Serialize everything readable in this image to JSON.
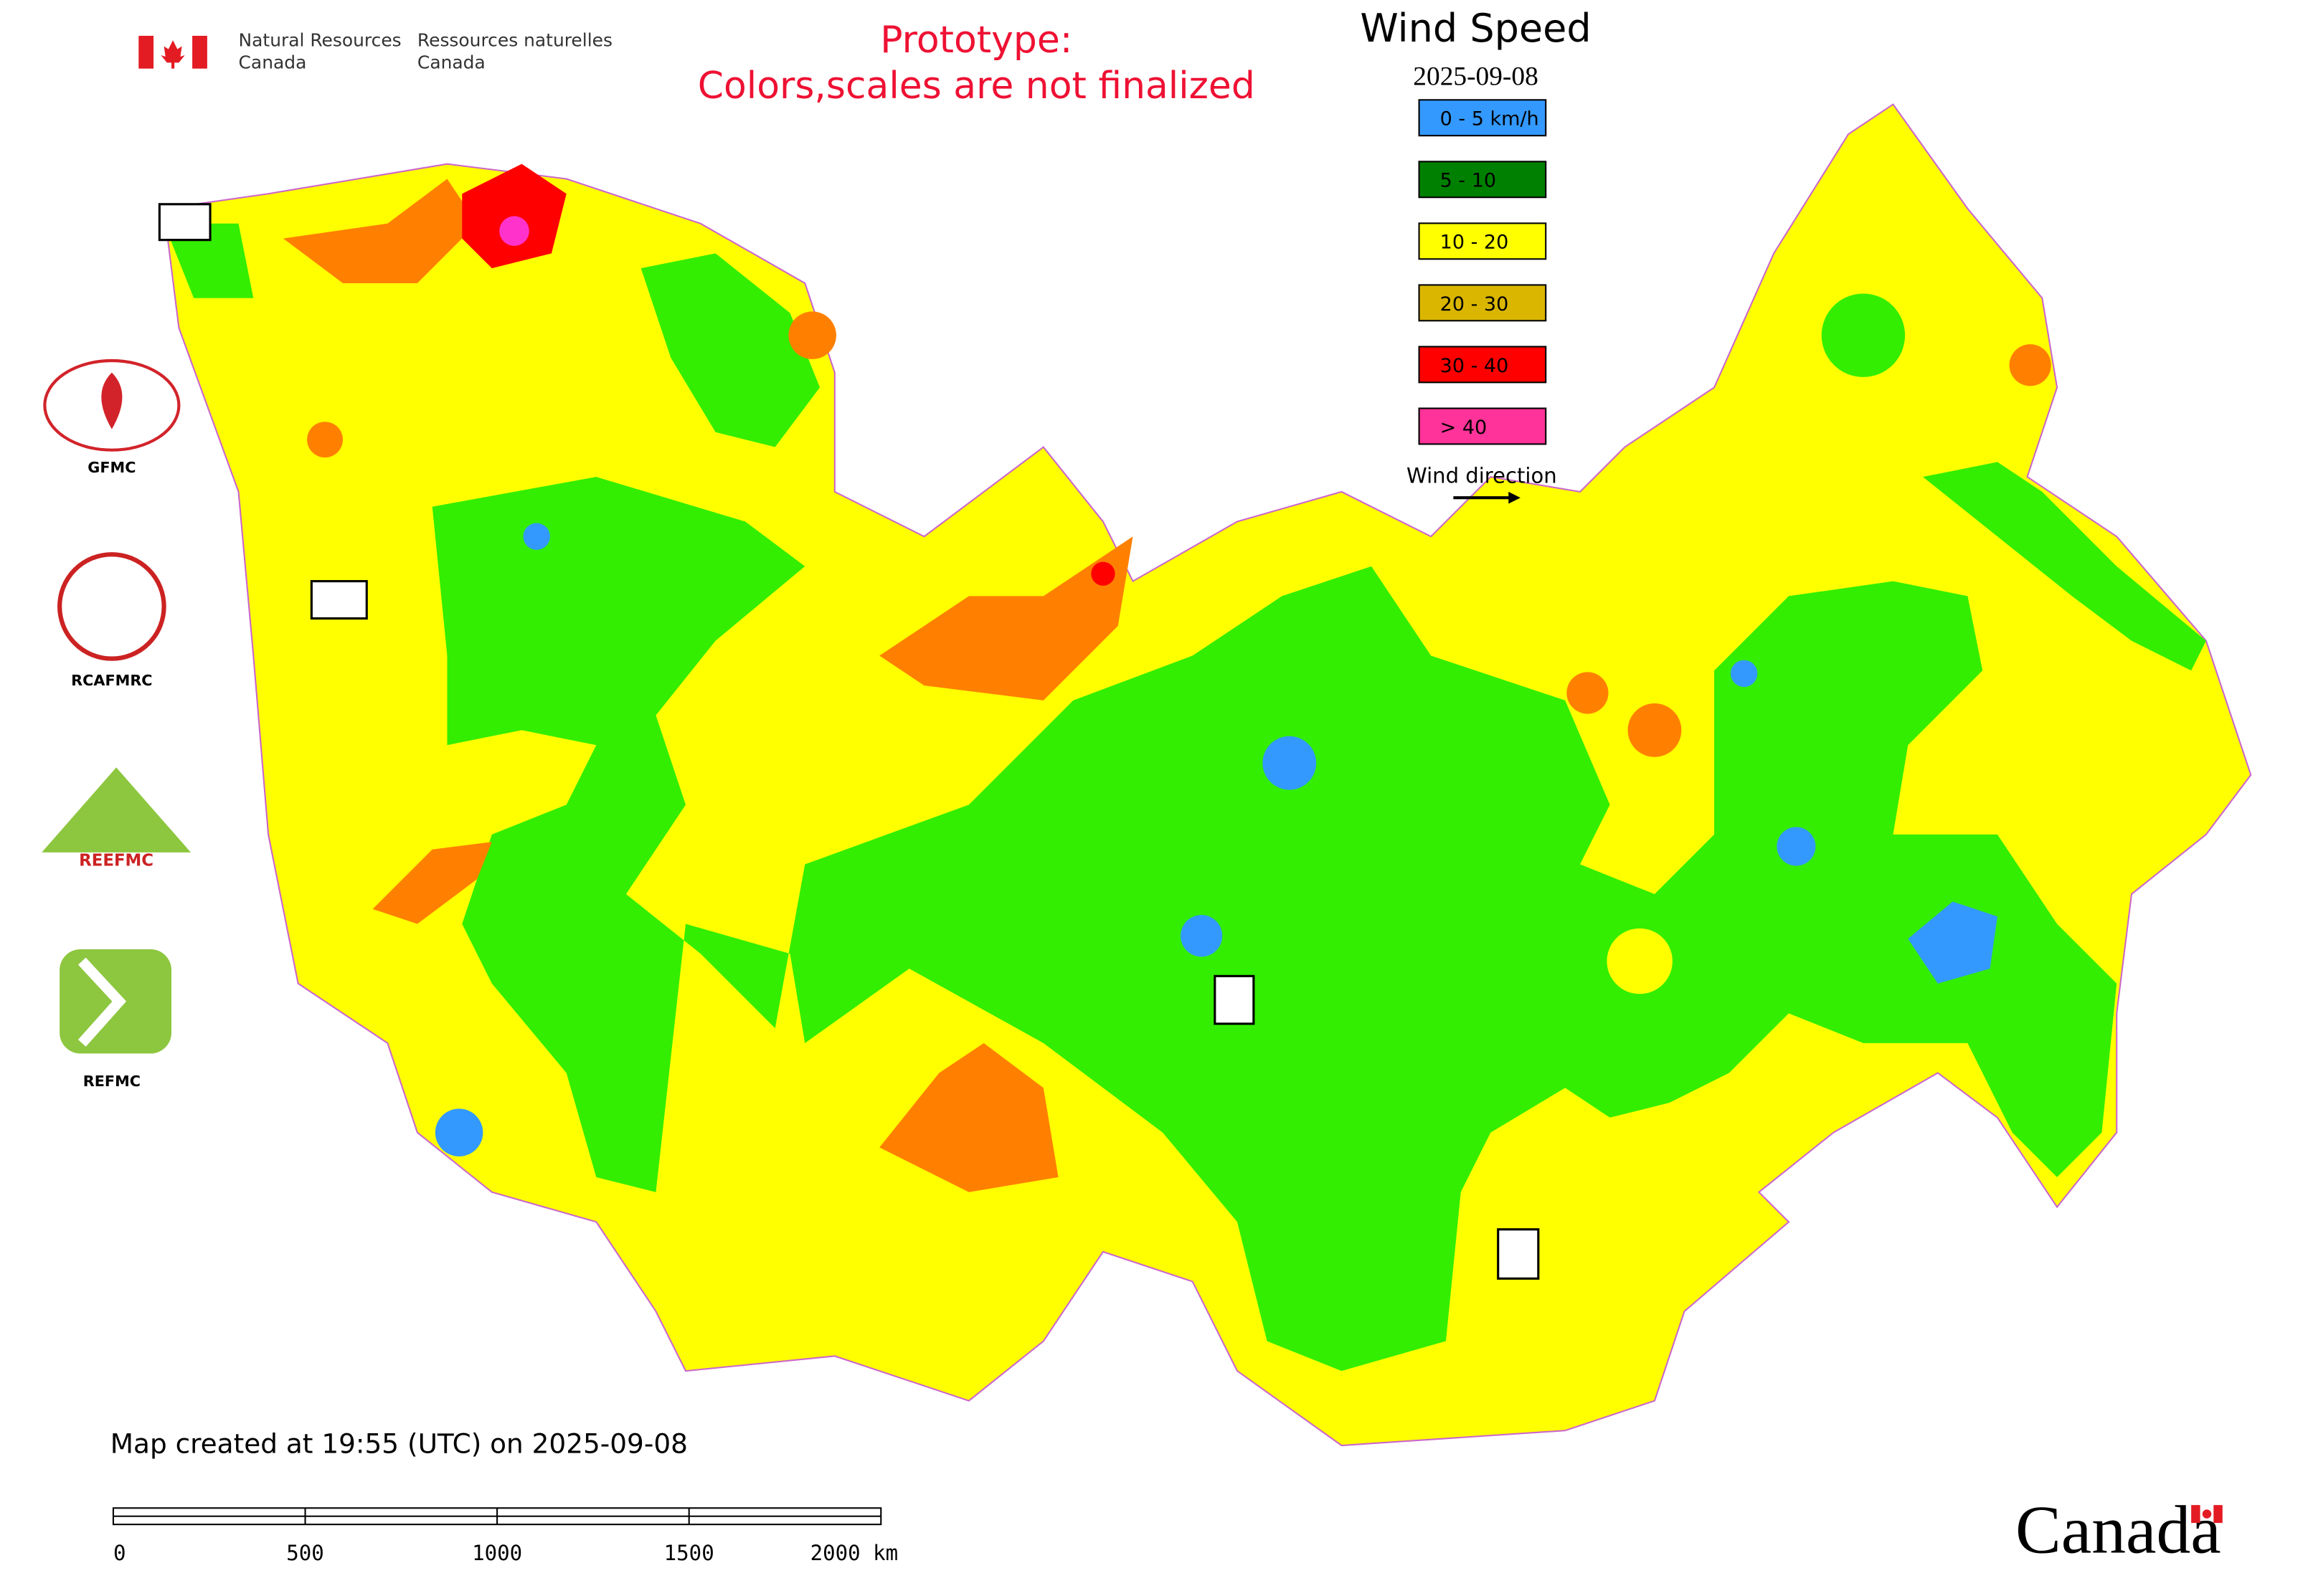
{
  "header": {
    "dept_en": [
      "Natural Resources",
      "Canada"
    ],
    "dept_fr": [
      "Ressources naturelles",
      "Canada"
    ],
    "notice": [
      "Prototype:",
      "Colors,scales are not finalized"
    ]
  },
  "legend": {
    "title": "Wind Speed",
    "date": "2025-09-08",
    "items": [
      {
        "label": "0 - 5 km/h",
        "color": "#3399ff"
      },
      {
        "label": "5 - 10",
        "color": "#008000"
      },
      {
        "label": "10 - 20",
        "color": "#ffff00"
      },
      {
        "label": "20 - 30",
        "color": "#dab600"
      },
      {
        "label": "30 - 40",
        "color": "#ff0000"
      },
      {
        "label": "> 40",
        "color": "#ff3399"
      }
    ],
    "wind_direction": "Wind direction"
  },
  "logos": {
    "labels": [
      "GFMC",
      "RCAFMRC",
      "REFMC"
    ],
    "reefmc_text": "REEFMC"
  },
  "footer": {
    "created": "Map created at 19:55 (UTC) on 2025-09-08",
    "scale": [
      "0",
      "500",
      "1000",
      "1500",
      "2000 km"
    ],
    "wordmark": "Canada"
  }
}
